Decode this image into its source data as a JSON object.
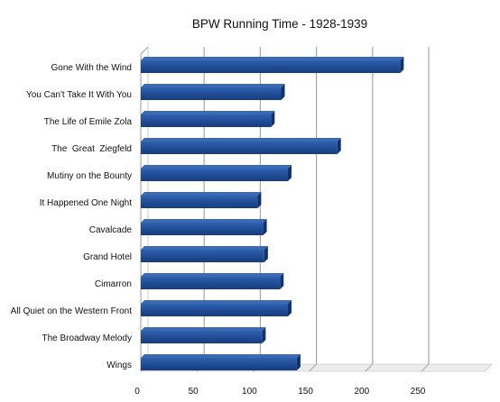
{
  "chart_data": {
    "type": "bar",
    "orientation": "horizontal",
    "title": "BPW Running Time - 1928-1939",
    "xlabel": "",
    "ylabel": "",
    "categories": [
      "Gone With the Wind",
      "You Can't Take It With You",
      "The Life of Emile Zola",
      "The  Great  Ziegfeld",
      "Mutiny on the Bounty",
      "It Happened One Night",
      "Cavalcade",
      "Grand Hotel",
      "Cimarron",
      "All Quiet on the Western Front",
      "The Broadway Melody",
      "Wings"
    ],
    "values": [
      231,
      125,
      116,
      175,
      131,
      104,
      109,
      110,
      124,
      131,
      108,
      139
    ],
    "xlim": [
      0,
      250
    ],
    "xticks": [
      "0",
      "50",
      "100",
      "150",
      "200",
      "250"
    ],
    "grid": true,
    "legend": "none",
    "colors": {
      "bar_front": "#23509b",
      "bar_top": "#3a6ab5",
      "bar_side": "#12306a",
      "grid": "#a6a6a6",
      "wall": "#ffffff"
    }
  }
}
